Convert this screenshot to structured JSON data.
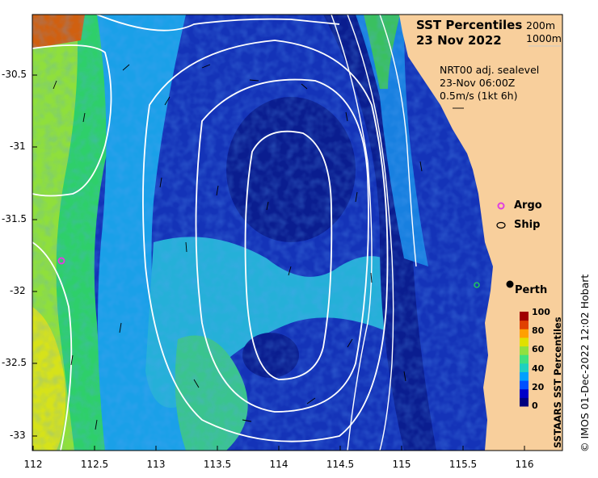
{
  "title": "SST Percentiles",
  "date": "23 Nov 2022",
  "contours": {
    "c1": "200m",
    "c2": "1000m"
  },
  "sealevel": {
    "product": "NRT00 adj. sealevel",
    "time": "23-Nov 06:00Z",
    "scale": "0.5m/s (1kt 6h)"
  },
  "legend": {
    "argo": "Argo",
    "ship": "Ship"
  },
  "place": "Perth",
  "colorbar": {
    "label": "SSTAARS SST Percentiles",
    "ticks": [
      "100",
      "80",
      "60",
      "40",
      "20",
      "0"
    ],
    "colors": [
      "#00007f",
      "#0000c8",
      "#0050ff",
      "#00a0ff",
      "#20d0c0",
      "#40e080",
      "#90e040",
      "#e0e000",
      "#ffa000",
      "#e04000",
      "#a00000"
    ]
  },
  "axes": {
    "lon_ticks": [
      "112",
      "112.5",
      "113",
      "113.5",
      "114",
      "114.5",
      "115",
      "115.5",
      "116"
    ],
    "lat_ticks": [
      "-30.5",
      "-31",
      "-31.5",
      "-32",
      "-32.5",
      "-33"
    ]
  },
  "credit": "© IMOS 01-Dec-2022 12:02 Hobart"
}
